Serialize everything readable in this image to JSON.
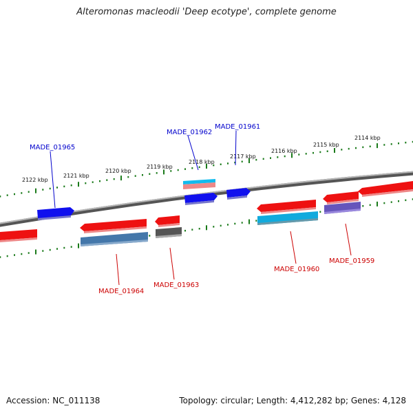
{
  "title": "Alteromonas macleodii 'Deep ecotype', complete genome",
  "footer": {
    "accession": "Accession: NC_011138",
    "stats": "Topology: circular; Length: 4,412,282 bp; Genes: 4,128"
  },
  "colors": {
    "backbone": "#7a7a7a",
    "ticks": "#1a7a1a",
    "forward_label": "#0000cc",
    "reverse_label": "#cc0000",
    "red": "#ee1111",
    "blue": "#0a0aee",
    "light_blue": "#11aadd",
    "steel_blue": "#4477aa",
    "gray": "#555555",
    "purple": "#6655bb",
    "pink": "#ee8888"
  },
  "kbp_labels": [
    "2122 kbp",
    "2121 kbp",
    "2120 kbp",
    "2119 kbp",
    "2118 kbp",
    "2117 kbp",
    "2116 kbp",
    "2115 kbp",
    "2114 kbp"
  ],
  "gene_labels": {
    "forward": [
      "MADE_01965",
      "MADE_01962",
      "MADE_01961"
    ],
    "reverse": [
      "MADE_01964",
      "MADE_01963",
      "MADE_01960",
      "MADE_01959"
    ]
  }
}
